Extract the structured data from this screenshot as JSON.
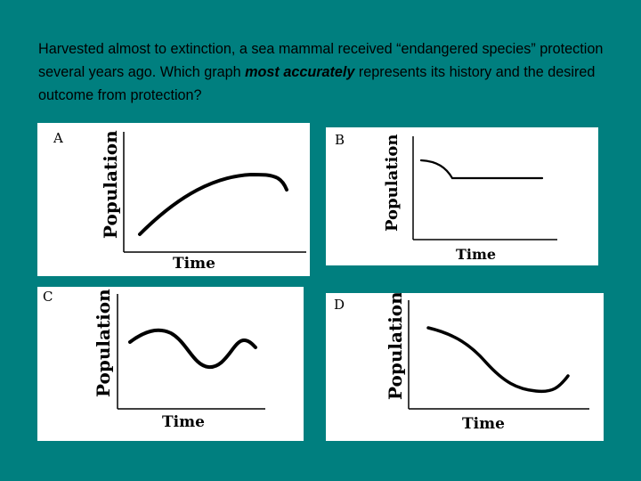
{
  "question": {
    "part1": "Harvested almost to extinction, a sea mammal received “endangered species” protection several years ago. Which graph ",
    "emphasis": "most accurately",
    "part2": " represents its history and the desired outcome from protection?"
  },
  "graphs": [
    {
      "letter": "A",
      "ylabel": "Population",
      "xlabel": "Time"
    },
    {
      "letter": "B",
      "ylabel": "Population",
      "xlabel": "Time"
    },
    {
      "letter": "C",
      "ylabel": "Population",
      "xlabel": "Time"
    },
    {
      "letter": "D",
      "ylabel": "Population",
      "xlabel": "Time"
    }
  ]
}
